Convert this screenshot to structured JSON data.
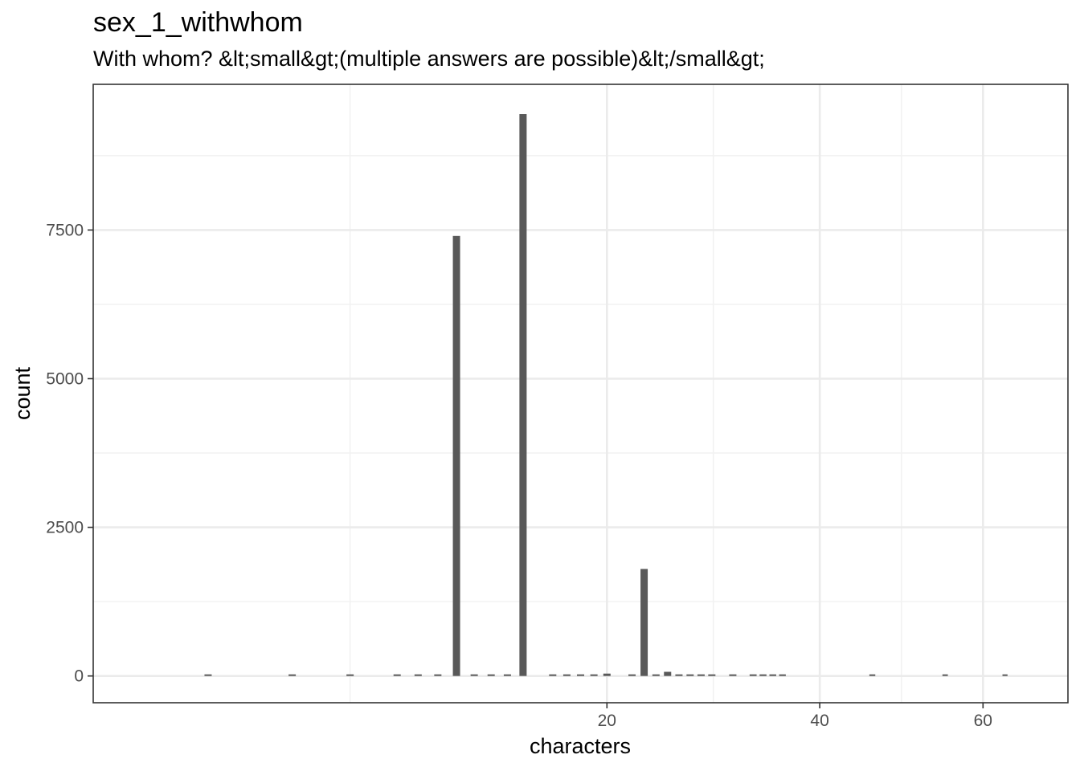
{
  "title": "sex_1_withwhom",
  "subtitle": "With whom? &lt;small&gt;(multiple answers are possible)&lt;/small&gt;",
  "colors": {
    "bar": "#595959",
    "grid_major": "#ebebeb",
    "grid_minor": "#f2f2f2",
    "panel_border": "#333333",
    "tick_text": "#4d4d4d"
  },
  "chart_data": {
    "type": "bar",
    "title": "sex_1_withwhom",
    "subtitle": "With whom? &lt;small&gt;(multiple answers are possible)&lt;/small&gt;",
    "xlabel": "characters",
    "ylabel": "count",
    "x_scale": "sqrt",
    "x_ticks": [
      20,
      40,
      60
    ],
    "y_ticks": [
      0,
      2500,
      5000,
      7500
    ],
    "xlim": [
      0,
      72
    ],
    "ylim": [
      -450,
      9950
    ],
    "grid": true,
    "x": [
      1,
      3,
      5,
      7,
      8,
      9,
      10,
      11,
      12,
      13,
      14,
      16,
      17,
      18,
      19,
      20,
      22,
      23,
      24,
      25,
      26,
      27,
      28,
      29,
      31,
      33,
      34,
      35,
      36,
      46,
      55,
      63
    ],
    "values": [
      8,
      15,
      12,
      20,
      15,
      20,
      7400,
      25,
      12,
      20,
      9450,
      5,
      5,
      5,
      5,
      40,
      15,
      1800,
      5,
      70,
      20,
      15,
      15,
      10,
      8,
      20,
      15,
      15,
      15,
      15,
      8,
      5
    ]
  }
}
